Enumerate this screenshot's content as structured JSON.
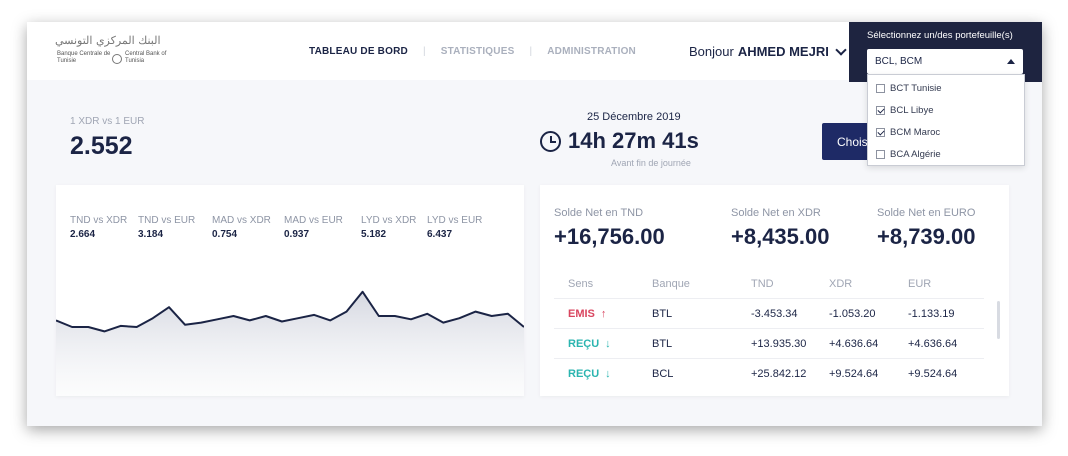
{
  "header": {
    "logo": {
      "arabic": "البنك المركزي التونسي",
      "french": "Banque Centrale de Tunisie",
      "english": "Central Bank of Tunisia"
    },
    "nav": [
      {
        "label": "TABLEAU DE BORD",
        "active": true
      },
      {
        "label": "STATISTIQUES",
        "active": false
      },
      {
        "label": "ADMINISTRATION",
        "active": false
      }
    ],
    "greeting_prefix": "Bonjour",
    "user_name": "AHMED MEJRI"
  },
  "portfolio_selector": {
    "title": "Sélectionnez un/des portefeuille(s)",
    "selected_value": "BCL, BCM",
    "options": [
      {
        "label": "BCT Tunisie",
        "checked": false
      },
      {
        "label": "BCL Libye",
        "checked": true
      },
      {
        "label": "BCM Maroc",
        "checked": true
      },
      {
        "label": "BCA Algérie",
        "checked": false
      }
    ]
  },
  "rate": {
    "label": "1 XDR vs 1 EUR",
    "value": "2.552"
  },
  "countdown": {
    "date": "25 Décembre 2019",
    "time": "14h 27m 41s",
    "subtitle": "Avant fin de journée"
  },
  "choose_button_label": "Choisir",
  "pairs": [
    {
      "label": "TND vs XDR",
      "value": "2.664"
    },
    {
      "label": "TND vs EUR",
      "value": "3.184"
    },
    {
      "label": "MAD vs XDR",
      "value": "0.754"
    },
    {
      "label": "MAD vs EUR",
      "value": "0.937"
    },
    {
      "label": "LYD vs XDR",
      "value": "5.182"
    },
    {
      "label": "LYD vs EUR",
      "value": "6.437"
    }
  ],
  "chart_data": {
    "type": "area",
    "title": "",
    "xlabel": "",
    "ylabel": "",
    "values": [
      46,
      40,
      40,
      36,
      41,
      40,
      48,
      58,
      42,
      44,
      47,
      50,
      46,
      50,
      45,
      48,
      51,
      46,
      54,
      72,
      50,
      50,
      47,
      52,
      44,
      48,
      54,
      50,
      52,
      40
    ],
    "ylim": [
      0,
      100
    ],
    "grid": false,
    "line_color": "#1b2445"
  },
  "soldes": [
    {
      "label": "Solde Net en TND",
      "value": "+16,756.00"
    },
    {
      "label": "Solde Net en XDR",
      "value": "+8,435.00"
    },
    {
      "label": "Solde Net en EURO",
      "value": "+8,739.00"
    }
  ],
  "table": {
    "headers": [
      "Sens",
      "Banque",
      "TND",
      "XDR",
      "EUR"
    ],
    "rows": [
      {
        "sens": "EMIS",
        "direction": "up",
        "banque": "BTL",
        "tnd": "-3.453.34",
        "xdr": "-1.053.20",
        "eur": "-1.133.19"
      },
      {
        "sens": "REÇU",
        "direction": "down",
        "banque": "BTL",
        "tnd": "+13.935.30",
        "xdr": "+4.636.64",
        "eur": "+4.636.64"
      },
      {
        "sens": "REÇU",
        "direction": "down",
        "banque": "BCL",
        "tnd": "+25.842.12",
        "xdr": "+9.524.64",
        "eur": "+9.524.64"
      }
    ]
  },
  "colors": {
    "navy": "#1b2445",
    "dark_panel": "#1e2440",
    "button": "#1e2a66",
    "emis": "#d9455f",
    "recu": "#2bb5b0"
  }
}
